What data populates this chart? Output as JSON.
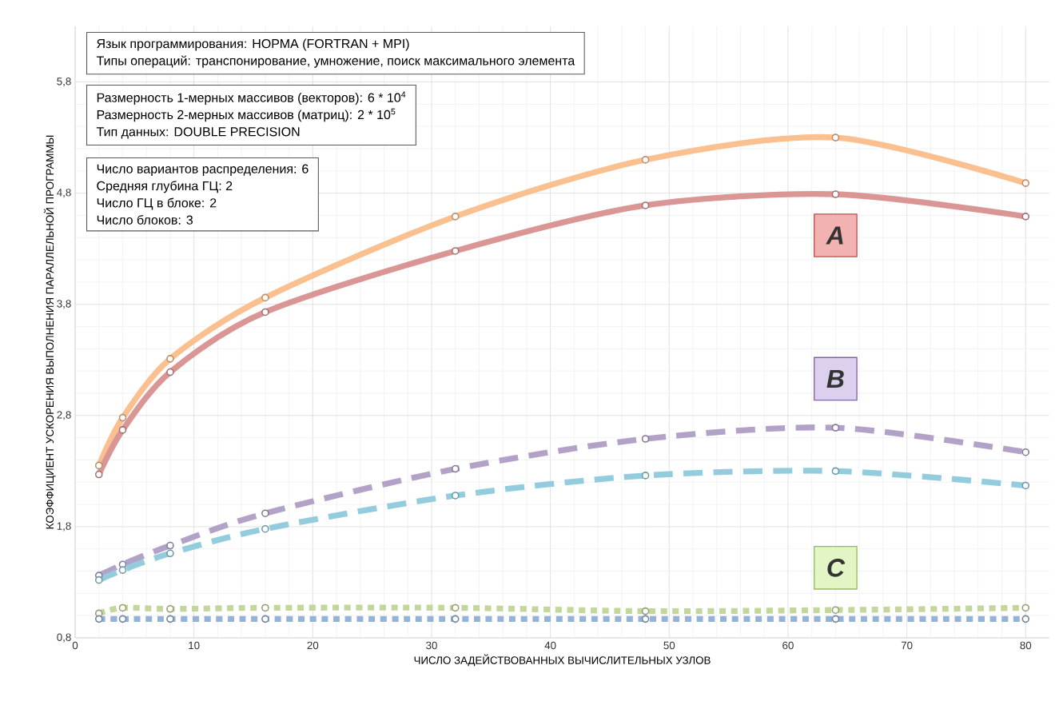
{
  "chart_data": {
    "type": "line",
    "xlabel": "ЧИСЛО ЗАДЕЙСТВОВАННЫХ ВЫЧИСЛИТЕЛЬНЫХ УЗЛОВ",
    "ylabel": "КОЭФФИЦИЕНТ УСКОРЕНИЯ ВЫПОЛНЕНИЯ ПАРАЛЛЕЛЬНОЙ ПРОГРАММЫ",
    "x": [
      2,
      4,
      8,
      16,
      32,
      48,
      64,
      80
    ],
    "xlim": [
      0,
      82
    ],
    "xticks": [
      0,
      10,
      20,
      30,
      40,
      50,
      60,
      70,
      80
    ],
    "ylim": [
      0.8,
      6.3
    ],
    "yticks": [
      {
        "value": 0.8,
        "label": "0,8"
      },
      {
        "value": 1.8,
        "label": "1,8"
      },
      {
        "value": 2.8,
        "label": "2,8"
      },
      {
        "value": 3.8,
        "label": "3,8"
      },
      {
        "value": 4.8,
        "label": "4,8"
      },
      {
        "value": 5.8,
        "label": "5,8"
      }
    ],
    "grid": true,
    "marker": "circle",
    "series": [
      {
        "color": "#fac090",
        "line_style": "solid",
        "values": [
          2.35,
          2.78,
          3.31,
          3.86,
          4.59,
          5.1,
          5.3,
          4.89
        ]
      },
      {
        "color": "#d99694",
        "line_style": "solid",
        "values": [
          2.27,
          2.67,
          3.19,
          3.73,
          4.28,
          4.69,
          4.79,
          4.59
        ]
      },
      {
        "color": "#b3a2c7",
        "line_style": "dashed",
        "values": [
          1.36,
          1.46,
          1.63,
          1.92,
          2.32,
          2.59,
          2.69,
          2.47
        ]
      },
      {
        "color": "#93cddd",
        "line_style": "dashed",
        "values": [
          1.32,
          1.41,
          1.56,
          1.78,
          2.08,
          2.26,
          2.3,
          2.17
        ]
      },
      {
        "color": "#c3d69b",
        "line_style": "dotted",
        "values": [
          1.02,
          1.07,
          1.06,
          1.07,
          1.07,
          1.04,
          1.05,
          1.07
        ]
      },
      {
        "color": "#95b3d7",
        "line_style": "dotted",
        "values": [
          0.97,
          0.97,
          0.97,
          0.97,
          0.97,
          0.97,
          0.97,
          0.97
        ]
      }
    ],
    "annotations": [
      "Язык программирования: НОРМА (FORTRAN + MPI)",
      "Типы операций: транспонирование, умножение, поиск максимального элемента",
      "Размерность 1-мерных массивов (векторов): 6 * 10$^{4}$",
      "Размерность 2-мерных массивов (матриц): 2 * 10$^{5}$",
      "Тип данных: DOUBLE PRECISION",
      "Число вариантов распределения: 6",
      "Средняя глубина ГЦ: 2",
      "Число ГЦ в блоке: 2",
      "Число блоков: 3",
      "A",
      "B",
      "C"
    ]
  }
}
